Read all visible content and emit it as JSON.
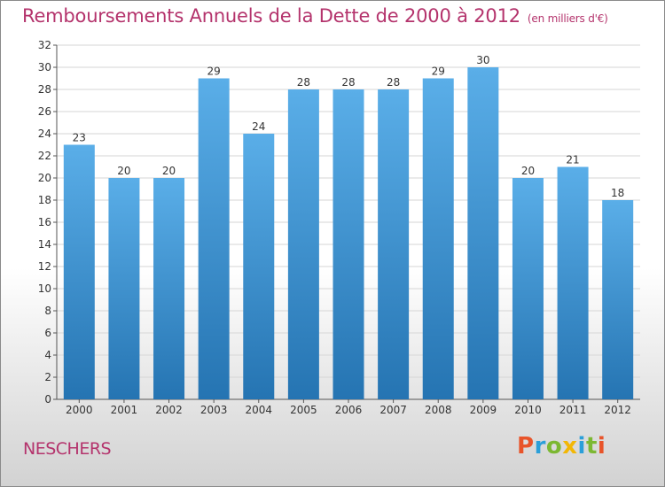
{
  "title": "Remboursements Annuels de la Dette de 2000 à 2012",
  "title_unit": "(en milliers d'€)",
  "commune": "NESCHERS",
  "logo": {
    "letters": [
      "P",
      "r",
      "o",
      "x",
      "i",
      "t",
      "i"
    ],
    "colors": [
      "#e8542a",
      "#2b9fd9",
      "#7cb832",
      "#f2b705",
      "#2b9fd9",
      "#7cb832",
      "#e8542a"
    ]
  },
  "colors": {
    "bar_top": "#5aaee8",
    "bar_bottom": "#2574b2",
    "title": "#b4336c"
  },
  "chart_data": {
    "type": "bar",
    "categories": [
      "2000",
      "2001",
      "2002",
      "2003",
      "2004",
      "2005",
      "2006",
      "2007",
      "2008",
      "2009",
      "2010",
      "2011",
      "2012"
    ],
    "values": [
      23,
      20,
      20,
      29,
      24,
      28,
      28,
      28,
      29,
      30,
      20,
      21,
      18
    ],
    "ylim": [
      0,
      32
    ],
    "yticks": [
      0,
      2,
      4,
      6,
      8,
      10,
      12,
      14,
      16,
      18,
      20,
      22,
      24,
      26,
      28,
      30,
      32
    ],
    "grid": true,
    "xlabel": "",
    "ylabel": ""
  }
}
